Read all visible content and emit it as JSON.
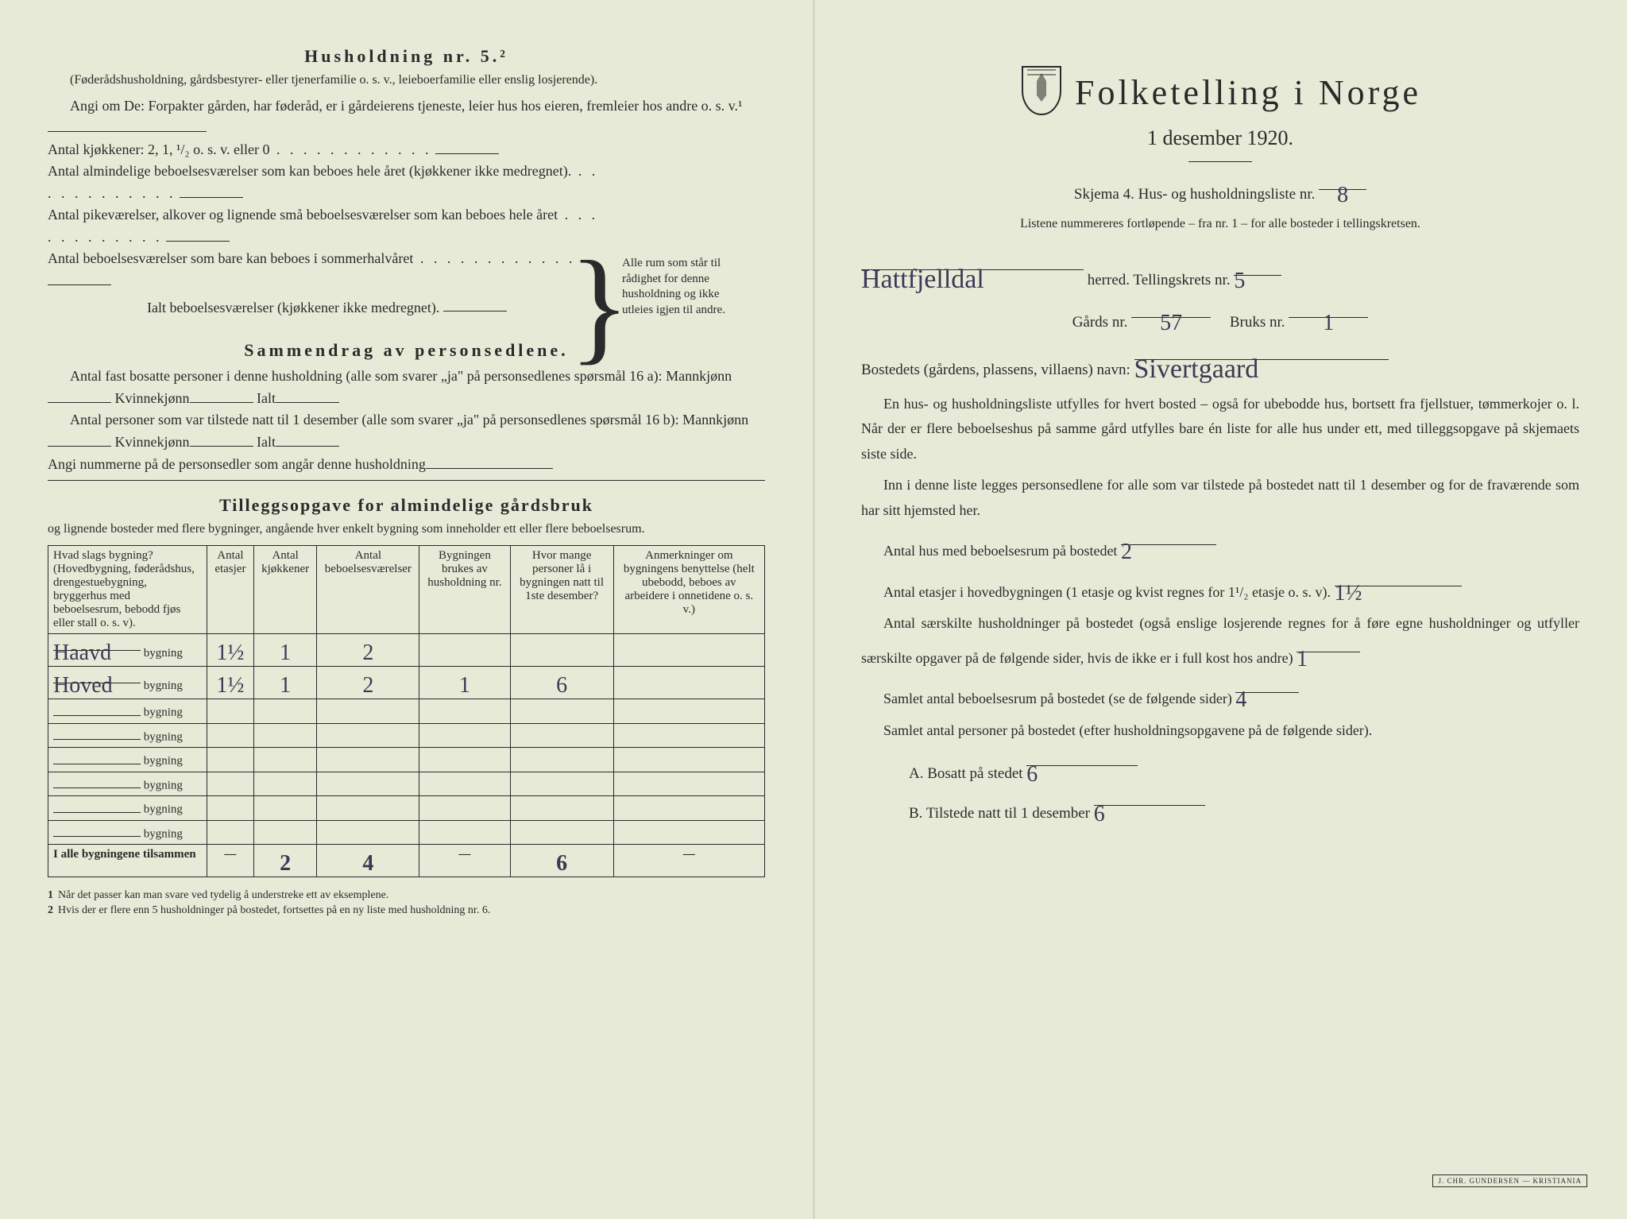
{
  "left": {
    "heading": "Husholdning nr. 5.²",
    "intro_paren": "(Føderådshusholdning, gårdsbestyrer- eller tjenerfamilie o. s. v., leieboerfamilie eller enslig losjerende).",
    "angi": "Angi om De: Forpakter gården, har føderåd, er i gårdeierens tjeneste, leier hus hos eieren, fremleier hos andre o. s. v.¹",
    "kitchens": "Antal kjøkkener: 2, 1, ¹/₂ o. s. v. eller 0",
    "rooms1": "Antal almindelige beboelsesværelser som kan beboes hele året (kjøkkener ikke medregnet).",
    "rooms2": "Antal pikeværelser, alkover og lignende små beboelsesværelser som kan beboes hele året",
    "rooms3": "Antal beboelsesværelser som bare kan beboes i sommerhalvåret",
    "rooms_total": "Ialt beboelsesværelser  (kjøkkener ikke medregnet).",
    "brace_note": "Alle rum som står til rådighet for denne husholdning og ikke utleies igjen til andre.",
    "summary_heading": "Sammendrag av personsedlene.",
    "sum1a": "Antal fast bosatte personer i denne husholdning (alle som svarer „ja\" på personsedlenes spørsmål 16 a): Mannkjønn",
    "sum1b": "Kvinnekjønn",
    "sum1c": "Ialt",
    "sum2a": "Antal personer som var tilstede natt til 1 desember (alle som svarer „ja\" på personsedlenes spørsmål 16 b): Mannkjønn",
    "sum3": "Angi nummerne på de personsedler som angår denne husholdning",
    "supp_heading": "Tilleggsopgave for almindelige gårdsbruk",
    "supp_sub": "og lignende bosteder med flere bygninger, angående hver enkelt bygning som inneholder ett eller flere beboelsesrum.",
    "table": {
      "headers": [
        "Hvad slags bygning?\n(Hovedbygning, føderådshus, drengestuebygning, bryggerhus med beboelsesrum, bebodd fjøs eller stall o. s. v).",
        "Antal etasjer",
        "Antal kjøkkener",
        "Antal beboelsesværelser",
        "Bygningen brukes av husholdning nr.",
        "Hvor mange personer lå i bygningen natt til 1ste desember?",
        "Anmerkninger om bygningens benyttelse (helt ubebodd, beboes av arbeidere i onnetidene o. s. v.)"
      ],
      "row_label_suffix": "bygning",
      "rows": [
        {
          "name": "Haavd",
          "vals": [
            "1½",
            "1",
            "2",
            "",
            "",
            ""
          ]
        },
        {
          "name": "Hoved",
          "vals": [
            "1½",
            "1",
            "2",
            "1",
            "6",
            ""
          ]
        },
        {
          "name": "",
          "vals": [
            "",
            "",
            "",
            "",
            "",
            ""
          ]
        },
        {
          "name": "",
          "vals": [
            "",
            "",
            "",
            "",
            "",
            ""
          ]
        },
        {
          "name": "",
          "vals": [
            "",
            "",
            "",
            "",
            "",
            ""
          ]
        },
        {
          "name": "",
          "vals": [
            "",
            "",
            "",
            "",
            "",
            ""
          ]
        },
        {
          "name": "",
          "vals": [
            "",
            "",
            "",
            "",
            "",
            ""
          ]
        },
        {
          "name": "",
          "vals": [
            "",
            "",
            "",
            "",
            "",
            ""
          ]
        }
      ],
      "total_label": "I alle bygningene tilsammen",
      "totals": [
        "—",
        "2",
        "4",
        "—",
        "6",
        "—"
      ]
    },
    "footnote1": "Når det passer kan man svare ved tydelig å understreke ett av eksemplene.",
    "footnote2": "Hvis der er flere enn 5 husholdninger på bostedet, fortsettes på en ny liste med husholdning nr. 6."
  },
  "right": {
    "title": "Folketelling i Norge",
    "subtitle": "1 desember 1920.",
    "skjema": "Skjema 4.  Hus- og husholdningsliste nr.",
    "skjema_val": "8",
    "listene": "Listene nummereres fortløpende – fra nr. 1 – for alle bosteder i tellingskretsen.",
    "herred_val": "Hattfjelldal",
    "herred_label": "herred.   Tellingskrets nr.",
    "tellingskrets_val": "5",
    "gards_label": "Gårds nr.",
    "gards_val": "57",
    "bruks_label": "Bruks nr.",
    "bruks_val": "1",
    "bosted_label": "Bostedets (gårdens, plassens, villaens) navn:",
    "bosted_val": "Sivertgaard",
    "para1": "En hus- og husholdningsliste utfylles for hvert bosted – også for ubebodde hus, bortsett fra fjellstuer, tømmerkojer o. l.  Når der er flere beboelseshus på samme gård utfylles bare én liste for alle hus under ett, med tilleggsopgave på skjemaets siste side.",
    "para2": "Inn i denne liste legges personsedlene for alle som var tilstede på bostedet natt til 1 desember og for de fraværende som har sitt hjemsted her.",
    "q1": "Antal hus med beboelsesrum på bostedet",
    "q1_val": "2",
    "q2": "Antal etasjer i hovedbygningen (1 etasje og kvist regnes for 1¹/₂ etasje o. s. v).",
    "q2_val": "1½",
    "q3": "Antal særskilte husholdninger på bostedet (også enslige losjerende regnes for å føre egne husholdninger og utfyller særskilte opgaver på de følgende sider, hvis de ikke er i full kost hos andre)",
    "q3_val": "1",
    "q4": "Samlet antal beboelsesrum på bostedet (se de følgende sider)",
    "q4_val": "4",
    "q5": "Samlet antal personer på bostedet (efter husholdningsopgavene på de følgende sider).",
    "qA": "A.  Bosatt på stedet",
    "qA_val": "6",
    "qB": "B.  Tilstede natt til 1 desember",
    "qB_val": "6",
    "stamp": "J. CHR. GUNDERSEN — KRISTIANIA"
  },
  "colors": {
    "paper": "#e8ead8",
    "ink": "#2a2a2a",
    "handwriting": "#3b3a55"
  }
}
